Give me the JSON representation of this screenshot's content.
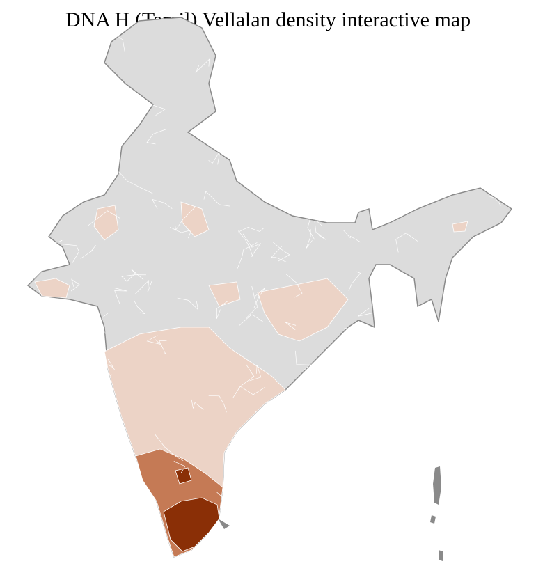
{
  "title": "DNA H (Tamil) Vellalan density interactive map",
  "colors": {
    "no_data": "#dcdcdc",
    "low": "#ecd3c6",
    "medium": "#c57a55",
    "high": "#8a2f06",
    "border": "#8a8a8a",
    "district_border": "#ffffff"
  }
}
